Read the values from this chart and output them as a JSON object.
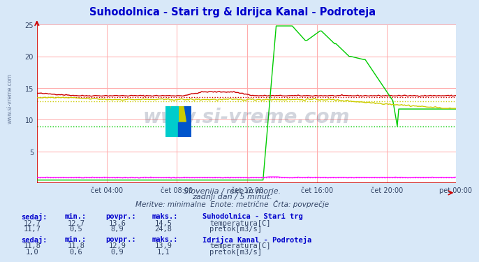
{
  "title": "Suhodolnica - Stari trg & Idrijca Kanal - Podroteja",
  "title_color": "#0000cc",
  "bg_color": "#d8e8f8",
  "plot_bg_color": "#ffffff",
  "grid_color": "#ffaaaa",
  "axis_color": "#cc0000",
  "text_color": "#334466",
  "ylabel_min": 0,
  "ylabel_max": 25,
  "xtick_positions": [
    48,
    96,
    144,
    192,
    240,
    287
  ],
  "xtick_labels": [
    "čet 04:00",
    "čet 08:00",
    "čet 12:00",
    "čet 16:00",
    "čet 20:00",
    "pet 00:00"
  ],
  "n_points": 288,
  "watermark": "www.si-vreme.com",
  "subtitle1": "Slovenija / reke in morje.",
  "subtitle2": "zadnji dan / 5 minut.",
  "subtitle3": "Meritve: minimalne  Enote: metrične  Črta: povprečje",
  "legend1_title": "Suhodolnica - Stari trg",
  "legend1_row1_vals": [
    "12,7",
    "12,7",
    "13,6",
    "14,5"
  ],
  "legend1_row1_label": "temperatura[C]",
  "legend1_row1_color": "#cc0000",
  "legend1_row2_vals": [
    "11,7",
    "0,5",
    "8,9",
    "24,8"
  ],
  "legend1_row2_label": "pretok[m3/s]",
  "legend1_row2_color": "#00cc00",
  "legend2_title": "Idrijca Kanal - Podroteja",
  "legend2_row1_vals": [
    "11,8",
    "11,8",
    "12,9",
    "13,9"
  ],
  "legend2_row1_label": "temperatura[C]",
  "legend2_row1_color": "#cccc00",
  "legend2_row2_vals": [
    "1,0",
    "0,6",
    "0,9",
    "1,1"
  ],
  "legend2_row2_label": "pretok[m3/s]",
  "legend2_row2_color": "#ff00ff",
  "col_headers": [
    "sedaj:",
    "min.:",
    "povpr.:",
    "maks.:"
  ],
  "avg_temp1": 13.6,
  "avg_pretok1": 8.9,
  "avg_temp2": 12.9,
  "avg_pretok2": 0.9
}
